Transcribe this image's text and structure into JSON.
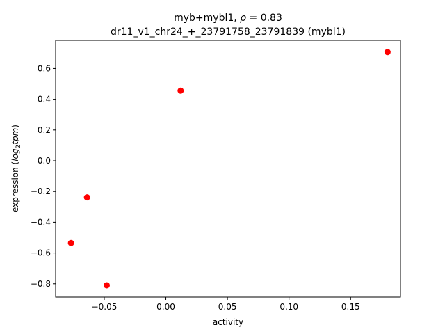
{
  "chart_data": {
    "type": "scatter",
    "title_line1_prefix": "myb+mybl1, ",
    "title_line1_rho": "ρ",
    "title_line1_suffix": " = 0.83",
    "title_line2": "dr11_v1_chr24_+_23791758_23791839 (mybl1)",
    "xlabel": "activity",
    "ylabel_prefix": "expression (",
    "ylabel_log": "log",
    "ylabel_sub": "2",
    "ylabel_tpm": "tpm",
    "ylabel_suffix": ")",
    "xlim": [
      -0.0895,
      0.1905
    ],
    "ylim": [
      -0.887,
      0.783
    ],
    "xticks": [
      {
        "value": -0.05,
        "label": "−0.05"
      },
      {
        "value": 0.0,
        "label": "0.00"
      },
      {
        "value": 0.05,
        "label": "0.05"
      },
      {
        "value": 0.1,
        "label": "0.10"
      },
      {
        "value": 0.15,
        "label": "0.15"
      }
    ],
    "yticks": [
      {
        "value": -0.8,
        "label": "−0.8"
      },
      {
        "value": -0.6,
        "label": "−0.6"
      },
      {
        "value": -0.4,
        "label": "−0.4"
      },
      {
        "value": -0.2,
        "label": "−0.2"
      },
      {
        "value": 0.0,
        "label": "0.0"
      },
      {
        "value": 0.2,
        "label": "0.2"
      },
      {
        "value": 0.4,
        "label": "0.4"
      },
      {
        "value": 0.6,
        "label": "0.6"
      }
    ],
    "points": [
      {
        "x": -0.077,
        "y": -0.535
      },
      {
        "x": -0.064,
        "y": -0.238
      },
      {
        "x": -0.048,
        "y": -0.81
      },
      {
        "x": 0.012,
        "y": 0.456
      },
      {
        "x": 0.18,
        "y": 0.707
      }
    ],
    "marker_color": "#ff0000",
    "grid": false
  }
}
